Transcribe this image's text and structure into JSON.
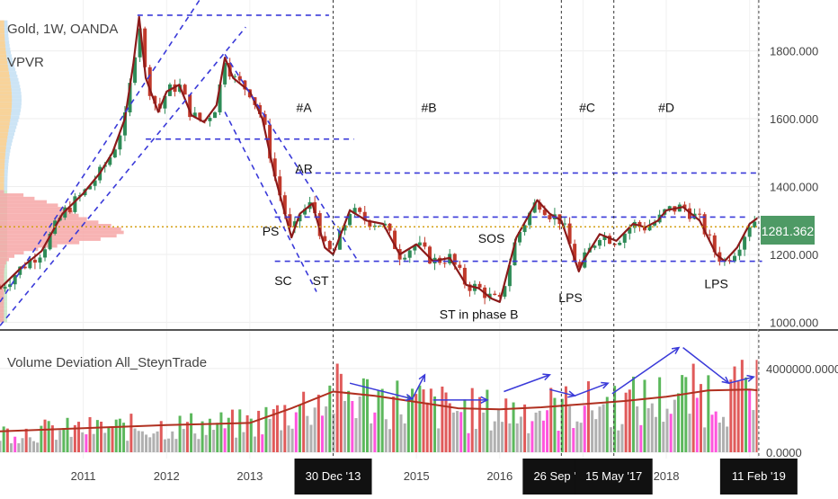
{
  "header": {
    "symbol": "Gold, 1W, OANDA",
    "indicator": "VPVR"
  },
  "volume_panel": {
    "title": "Volume Deviation All_SteynTrade"
  },
  "price_badge": "1281.362",
  "colors": {
    "price_line": "#8B1A1A",
    "bull": "#2E8B57",
    "bear": "#C0392B",
    "annotation": "#3A3AD9",
    "badge": "#4E9A65",
    "current_price": "#D4A017",
    "vol_green": "#5CB85C",
    "vol_red": "#E05A5A",
    "vol_gray": "#B0B0B0",
    "vol_pink": "#FF55DD",
    "vol_ma": "#B03020"
  },
  "chart_data": [
    {
      "type": "line",
      "title": "Gold, 1W, OANDA",
      "y_ticks": [
        1000,
        1200,
        1400,
        1600,
        1800
      ],
      "y_tick_labels": [
        "1000.000",
        "1200.000",
        "1400.000",
        "1600.000",
        "1800.000"
      ],
      "ylim": [
        980,
        1950
      ],
      "x_ticks": [
        2011,
        2012,
        2013,
        2014,
        2015,
        2016,
        2017,
        2018,
        2019
      ],
      "x_tick_labels": [
        "2011",
        "2012",
        "2013",
        "",
        "2015",
        "2016",
        "",
        "2018",
        ""
      ],
      "date_markers": [
        {
          "label": "30 Dec '13",
          "x": 2014.0
        },
        {
          "label": "26 Sep '16",
          "x": 2016.74
        },
        {
          "label": "15 May '17",
          "x": 2017.37
        },
        {
          "label": "11 Feb '19",
          "x": 2019.11
        }
      ],
      "series": [
        {
          "x": [
            2010.0,
            2010.25,
            2010.5,
            2010.75,
            2011.0,
            2011.2,
            2011.35,
            2011.5,
            2011.6,
            2011.67,
            2011.75,
            2011.9,
            2012.0,
            2012.15,
            2012.3,
            2012.45,
            2012.6,
            2012.7,
            2012.8,
            2013.0,
            2013.15,
            2013.3,
            2013.5,
            2013.6,
            2013.75,
            2013.9,
            2014.0,
            2014.2,
            2014.4,
            2014.6,
            2014.8,
            2015.0,
            2015.2,
            2015.4,
            2015.6,
            2015.75,
            2015.9,
            2016.0,
            2016.2,
            2016.45,
            2016.6,
            2016.74,
            2016.95,
            2017.0,
            2017.2,
            2017.4,
            2017.6,
            2017.75,
            2017.9,
            2018.0,
            2018.2,
            2018.4,
            2018.6,
            2018.7,
            2018.85,
            2019.0,
            2019.11
          ],
          "values": [
            1100,
            1160,
            1210,
            1320,
            1380,
            1440,
            1500,
            1600,
            1760,
            1900,
            1720,
            1620,
            1680,
            1700,
            1610,
            1590,
            1640,
            1780,
            1720,
            1680,
            1600,
            1430,
            1250,
            1320,
            1350,
            1220,
            1200,
            1330,
            1300,
            1290,
            1200,
            1230,
            1180,
            1190,
            1110,
            1100,
            1070,
            1060,
            1250,
            1360,
            1320,
            1300,
            1150,
            1180,
            1260,
            1240,
            1290,
            1280,
            1300,
            1330,
            1340,
            1300,
            1200,
            1180,
            1220,
            1290,
            1310
          ]
        }
      ],
      "current_price": 1281.362,
      "annotations": [
        "#A",
        "#B",
        "#C",
        "#D",
        "AR",
        "PS",
        "SC",
        "ST",
        "SOS",
        "ST in phase B",
        "LPS",
        "LPS"
      ]
    },
    {
      "type": "bar",
      "title": "Volume Deviation All_SteynTrade",
      "y_ticks": [
        0,
        4000000
      ],
      "y_tick_labels": [
        "0.0000",
        "4000000.0000"
      ],
      "ylim": [
        -300000,
        5800000
      ],
      "moving_average": {
        "x": [
          2010.0,
          2011.0,
          2012.0,
          2013.0,
          2013.5,
          2014.0,
          2014.5,
          2015.0,
          2015.5,
          2016.0,
          2016.5,
          2017.0,
          2017.5,
          2018.0,
          2018.5,
          2019.0,
          2019.11
        ],
        "values": [
          1000000,
          1150000,
          1300000,
          1400000,
          2100000,
          2900000,
          2700000,
          2400000,
          2100000,
          2050000,
          2150000,
          2300000,
          2450000,
          2650000,
          2950000,
          3000000,
          2950000
        ]
      }
    }
  ]
}
